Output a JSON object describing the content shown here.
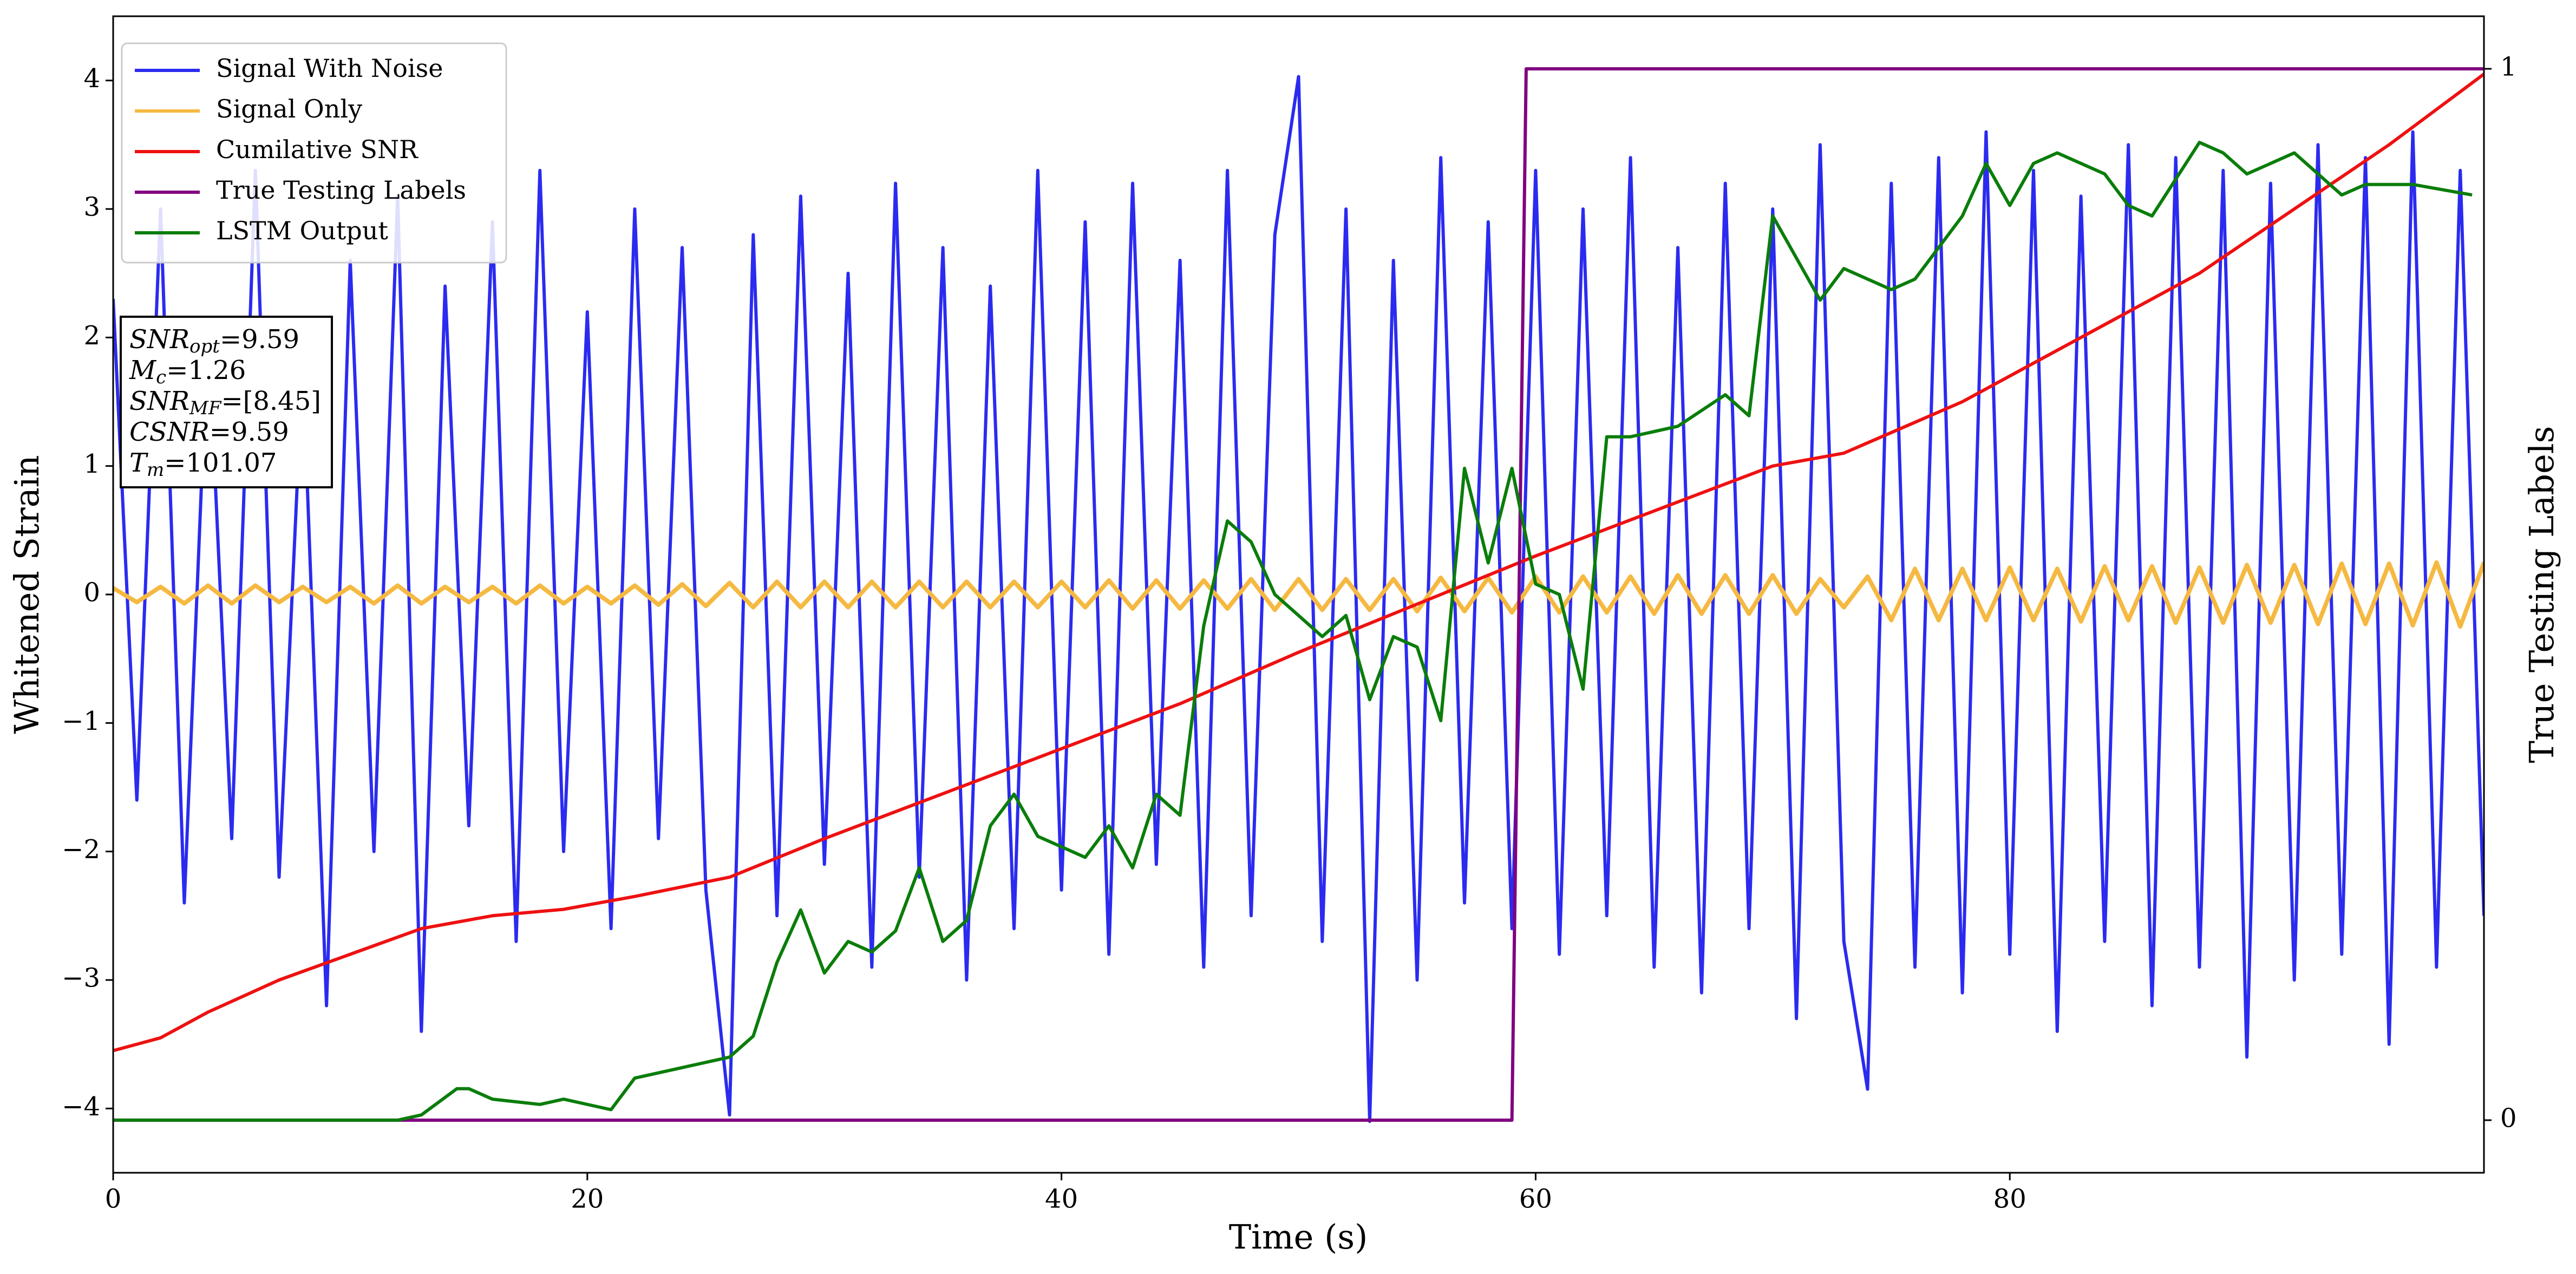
{
  "chart_data": {
    "type": "line",
    "xlabel": "Time (s)",
    "ylabel": "Whitened Strain",
    "y2label": "True Testing Labels",
    "xlim": [
      0,
      100
    ],
    "xticks": [
      0,
      20,
      40,
      60,
      80
    ],
    "ylim": [
      -4.5,
      4.5
    ],
    "yticks": [
      -4,
      -3,
      -2,
      -1,
      0,
      1,
      2,
      3,
      4
    ],
    "y2lim": [
      -0.05,
      1.05
    ],
    "y2ticks": [
      0,
      1
    ],
    "legend": "upper left",
    "annotations": [
      {
        "name": "SNR",
        "sub": "opt",
        "text": "=9.59"
      },
      {
        "name": "M",
        "sub": "c",
        "text": "=1.26"
      },
      {
        "name": "SNR",
        "sub": "MF",
        "text": "=[8.45]"
      },
      {
        "name": "CSNR",
        "text": "=9.59"
      },
      {
        "name": "T",
        "sub": "m",
        "text": "=101.07"
      }
    ],
    "series": [
      {
        "name": "Signal With Noise",
        "color": "#2b2bf0",
        "x": [
          0,
          1,
          2,
          3,
          4,
          5,
          6,
          7,
          8,
          9,
          10,
          11,
          12,
          13,
          14,
          15,
          16,
          17,
          18,
          19,
          20,
          21,
          22,
          23,
          24,
          25,
          26,
          27,
          28,
          29,
          30,
          31,
          32,
          33,
          34,
          35,
          36,
          37,
          38,
          39,
          40,
          41,
          42,
          43,
          44,
          45,
          46,
          47,
          48,
          49,
          50,
          51,
          52,
          53,
          54,
          55,
          56,
          57,
          58,
          59,
          60,
          61,
          62,
          63,
          64,
          65,
          66,
          67,
          68,
          69,
          70,
          71,
          72,
          73,
          74,
          75,
          76,
          77,
          78,
          79,
          80,
          81,
          82,
          83,
          84,
          85,
          86,
          87,
          88,
          89,
          90,
          91,
          92,
          93,
          94,
          95,
          96,
          97,
          98,
          99,
          100
        ],
        "values": [
          2.3,
          -1.6,
          3.0,
          -2.4,
          2.1,
          -1.9,
          3.3,
          -2.2,
          1.8,
          -3.2,
          2.6,
          -2.0,
          3.1,
          -3.4,
          2.4,
          -1.8,
          2.9,
          -2.7,
          3.3,
          -2.0,
          2.2,
          -2.6,
          3.0,
          -1.9,
          2.7,
          -2.3,
          -4.05,
          2.8,
          -2.5,
          3.1,
          -2.1,
          2.5,
          -2.9,
          3.2,
          -2.2,
          2.7,
          -3.0,
          2.4,
          -2.6,
          3.3,
          -2.3,
          2.9,
          -2.8,
          3.2,
          -2.1,
          2.6,
          -2.9,
          3.3,
          -2.5,
          2.8,
          4.03,
          -2.7,
          3.0,
          -4.1,
          2.6,
          -3.0,
          3.4,
          -2.4,
          2.9,
          -2.6,
          3.3,
          -2.8,
          3.0,
          -2.5,
          3.4,
          -2.9,
          2.7,
          -3.1,
          3.2,
          -2.6,
          3.0,
          -3.3,
          3.5,
          -2.7,
          -3.85,
          3.2,
          -2.9,
          3.4,
          -3.1,
          3.6,
          -2.8,
          3.3,
          -3.4,
          3.1,
          -2.7,
          3.5,
          -3.2,
          3.4,
          -2.9,
          3.3,
          -3.6,
          3.2,
          -3.0,
          3.5,
          -2.8,
          3.4,
          -3.5,
          3.6,
          -2.9,
          3.3,
          -2.5
        ]
      },
      {
        "name": "Signal Only",
        "color": "#f5b942",
        "x": [
          0,
          1,
          2,
          3,
          4,
          5,
          6,
          7,
          8,
          9,
          10,
          11,
          12,
          13,
          14,
          15,
          16,
          17,
          18,
          19,
          20,
          21,
          22,
          23,
          24,
          25,
          26,
          27,
          28,
          29,
          30,
          31,
          32,
          33,
          34,
          35,
          36,
          37,
          38,
          39,
          40,
          41,
          42,
          43,
          44,
          45,
          46,
          47,
          48,
          49,
          50,
          51,
          52,
          53,
          54,
          55,
          56,
          57,
          58,
          59,
          60,
          61,
          62,
          63,
          64,
          65,
          66,
          67,
          68,
          69,
          70,
          71,
          72,
          73,
          74,
          75,
          76,
          77,
          78,
          79,
          80,
          81,
          82,
          83,
          84,
          85,
          86,
          87,
          88,
          89,
          90,
          91,
          92,
          93,
          94,
          95,
          96,
          97,
          98,
          99,
          100
        ],
        "values": [
          0.05,
          -0.06,
          0.06,
          -0.07,
          0.07,
          -0.07,
          0.07,
          -0.06,
          0.06,
          -0.06,
          0.06,
          -0.07,
          0.07,
          -0.07,
          0.06,
          -0.06,
          0.06,
          -0.07,
          0.07,
          -0.07,
          0.06,
          -0.07,
          0.07,
          -0.08,
          0.08,
          -0.09,
          0.09,
          -0.1,
          0.1,
          -0.1,
          0.1,
          -0.1,
          0.1,
          -0.1,
          0.1,
          -0.1,
          0.1,
          -0.1,
          0.1,
          -0.1,
          0.1,
          -0.1,
          0.11,
          -0.11,
          0.11,
          -0.11,
          0.11,
          -0.11,
          0.12,
          -0.12,
          0.12,
          -0.12,
          0.12,
          -0.12,
          0.12,
          -0.13,
          0.13,
          -0.13,
          0.13,
          -0.14,
          0.14,
          -0.14,
          0.14,
          -0.14,
          0.14,
          -0.15,
          0.15,
          -0.15,
          0.15,
          -0.15,
          0.15,
          -0.15,
          0.12,
          -0.1,
          0.14,
          -0.2,
          0.2,
          -0.2,
          0.2,
          -0.2,
          0.21,
          -0.2,
          0.2,
          -0.21,
          0.22,
          -0.2,
          0.22,
          -0.22,
          0.21,
          -0.22,
          0.23,
          -0.22,
          0.23,
          -0.23,
          0.24,
          -0.23,
          0.24,
          -0.24,
          0.25,
          -0.25,
          0.25
        ]
      },
      {
        "name": "Cumilative SNR",
        "color": "#ee1111",
        "x": [
          0,
          2,
          4,
          7,
          10,
          13,
          16,
          19,
          22,
          26,
          30,
          35,
          40,
          45,
          50,
          56,
          60,
          65,
          70,
          73,
          78,
          83,
          88,
          92,
          96,
          100
        ],
        "values": [
          -3.55,
          -3.45,
          -3.25,
          -3.0,
          -2.8,
          -2.6,
          -2.5,
          -2.45,
          -2.35,
          -2.2,
          -1.9,
          -1.55,
          -1.2,
          -0.85,
          -0.45,
          0.0,
          0.3,
          0.65,
          1.0,
          1.1,
          1.5,
          2.0,
          2.5,
          3.0,
          3.5,
          4.05
        ]
      },
      {
        "name": "True Testing Labels",
        "color": "#800080",
        "axis": "y2",
        "x": [
          0,
          59,
          59.6,
          100
        ],
        "values": [
          0,
          0,
          1,
          1
        ]
      },
      {
        "name": "LSTM Output",
        "color": "#0a7d0a",
        "axis": "y2",
        "x": [
          0,
          12,
          13,
          14.5,
          15,
          16,
          18,
          19,
          21,
          22,
          24,
          26,
          27,
          28,
          29,
          30,
          31,
          32,
          33,
          34,
          35,
          36,
          37,
          38,
          39,
          40,
          41,
          42,
          43,
          44,
          45,
          46,
          47,
          48,
          49,
          50,
          51,
          52,
          53,
          54,
          55,
          56,
          57,
          58,
          59,
          60,
          61,
          62,
          63,
          64,
          66,
          68,
          69,
          70,
          71,
          72,
          73,
          75,
          76,
          78,
          79,
          80,
          81,
          82,
          84,
          85,
          86,
          88,
          89,
          90,
          91,
          92,
          94,
          95,
          97,
          99.5
        ],
        "values": [
          0,
          0,
          0.005,
          0.03,
          0.03,
          0.02,
          0.015,
          0.02,
          0.01,
          0.04,
          0.05,
          0.06,
          0.08,
          0.15,
          0.2,
          0.14,
          0.17,
          0.16,
          0.18,
          0.24,
          0.17,
          0.19,
          0.28,
          0.31,
          0.27,
          0.26,
          0.25,
          0.28,
          0.24,
          0.31,
          0.29,
          0.47,
          0.57,
          0.55,
          0.5,
          0.48,
          0.46,
          0.48,
          0.4,
          0.46,
          0.45,
          0.38,
          0.62,
          0.53,
          0.62,
          0.51,
          0.5,
          0.41,
          0.65,
          0.65,
          0.66,
          0.69,
          0.67,
          0.86,
          0.82,
          0.78,
          0.81,
          0.79,
          0.8,
          0.86,
          0.91,
          0.87,
          0.91,
          0.92,
          0.9,
          0.87,
          0.86,
          0.93,
          0.92,
          0.9,
          0.91,
          0.92,
          0.88,
          0.89,
          0.89,
          0.88
        ]
      }
    ]
  }
}
